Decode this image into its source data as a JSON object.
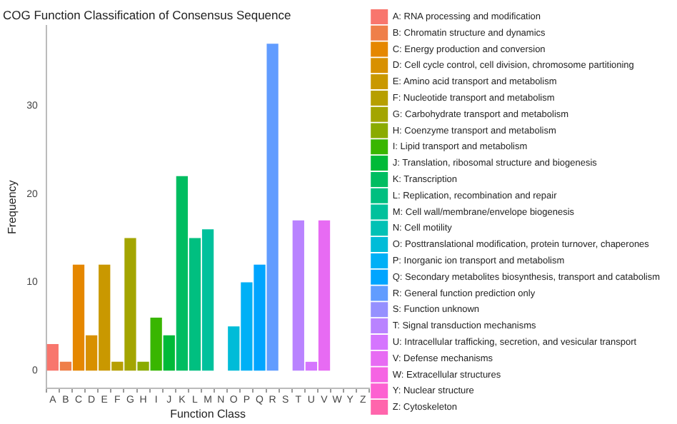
{
  "chart_data": {
    "type": "bar",
    "title": "COG Function Classification of Consensus Sequence",
    "xlabel": "Function Class",
    "ylabel": "Frequency",
    "categories": [
      "A",
      "B",
      "C",
      "D",
      "E",
      "F",
      "G",
      "H",
      "I",
      "J",
      "K",
      "L",
      "M",
      "N",
      "O",
      "P",
      "Q",
      "R",
      "S",
      "T",
      "U",
      "V",
      "W",
      "Y",
      "Z"
    ],
    "series": [
      {
        "name": "A: RNA processing and modification",
        "color": "#f8766d",
        "values": [
          3,
          null,
          null,
          null,
          null,
          null,
          null,
          null,
          null,
          null,
          null,
          null,
          null,
          null,
          null,
          null,
          null,
          null,
          null,
          null,
          null,
          null,
          null,
          null,
          null
        ]
      },
      {
        "name": "B: Chromatin structure and dynamics",
        "color": "#ef7f49",
        "values": [
          null,
          1,
          null,
          null,
          null,
          null,
          null,
          null,
          null,
          null,
          null,
          null,
          null,
          null,
          null,
          null,
          null,
          null,
          null,
          null,
          null,
          null,
          null,
          null,
          null
        ]
      },
      {
        "name": "C: Energy production and conversion",
        "color": "#e58700",
        "values": [
          null,
          null,
          12,
          null,
          null,
          null,
          null,
          null,
          null,
          null,
          null,
          null,
          null,
          null,
          null,
          null,
          null,
          null,
          null,
          null,
          null,
          null,
          null,
          null,
          null
        ]
      },
      {
        "name": "D: Cell cycle control, cell division, chromosome partitioning",
        "color": "#d89000",
        "values": [
          null,
          null,
          null,
          4,
          null,
          null,
          null,
          null,
          null,
          null,
          null,
          null,
          null,
          null,
          null,
          null,
          null,
          null,
          null,
          null,
          null,
          null,
          null,
          null,
          null
        ]
      },
      {
        "name": "E: Amino acid transport and metabolism",
        "color": "#c99800",
        "values": [
          null,
          null,
          null,
          null,
          12,
          null,
          null,
          null,
          null,
          null,
          null,
          null,
          null,
          null,
          null,
          null,
          null,
          null,
          null,
          null,
          null,
          null,
          null,
          null,
          null
        ]
      },
      {
        "name": "F: Nucleotide transport and metabolism",
        "color": "#b79f00",
        "values": [
          null,
          null,
          null,
          null,
          null,
          1,
          null,
          null,
          null,
          null,
          null,
          null,
          null,
          null,
          null,
          null,
          null,
          null,
          null,
          null,
          null,
          null,
          null,
          null,
          null
        ]
      },
      {
        "name": "G: Carbohydrate transport and metabolism",
        "color": "#a3a500",
        "values": [
          null,
          null,
          null,
          null,
          null,
          null,
          15,
          null,
          null,
          null,
          null,
          null,
          null,
          null,
          null,
          null,
          null,
          null,
          null,
          null,
          null,
          null,
          null,
          null,
          null
        ]
      },
      {
        "name": "H: Coenzyme transport and metabolism",
        "color": "#8aab00",
        "values": [
          null,
          null,
          null,
          null,
          null,
          null,
          null,
          1,
          null,
          null,
          null,
          null,
          null,
          null,
          null,
          null,
          null,
          null,
          null,
          null,
          null,
          null,
          null,
          null,
          null
        ]
      },
      {
        "name": "I: Lipid transport and metabolism",
        "color": "#39b600",
        "values": [
          null,
          null,
          null,
          null,
          null,
          null,
          null,
          null,
          6,
          null,
          null,
          null,
          null,
          null,
          null,
          null,
          null,
          null,
          null,
          null,
          null,
          null,
          null,
          null,
          null
        ]
      },
      {
        "name": "J: Translation, ribosomal structure and biogenesis",
        "color": "#00ba38",
        "values": [
          null,
          null,
          null,
          null,
          null,
          null,
          null,
          null,
          null,
          4,
          null,
          null,
          null,
          null,
          null,
          null,
          null,
          null,
          null,
          null,
          null,
          null,
          null,
          null,
          null
        ]
      },
      {
        "name": "K: Transcription",
        "color": "#00bd61",
        "values": [
          null,
          null,
          null,
          null,
          null,
          null,
          null,
          null,
          null,
          null,
          22,
          null,
          null,
          null,
          null,
          null,
          null,
          null,
          null,
          null,
          null,
          null,
          null,
          null,
          null
        ]
      },
      {
        "name": "L: Replication, recombination and repair",
        "color": "#00bf80",
        "values": [
          null,
          null,
          null,
          null,
          null,
          null,
          null,
          null,
          null,
          null,
          null,
          15,
          null,
          null,
          null,
          null,
          null,
          null,
          null,
          null,
          null,
          null,
          null,
          null,
          null
        ]
      },
      {
        "name": "M: Cell wall/membrane/envelope biogenesis",
        "color": "#00c19c",
        "values": [
          null,
          null,
          null,
          null,
          null,
          null,
          null,
          null,
          null,
          null,
          null,
          null,
          16,
          null,
          null,
          null,
          null,
          null,
          null,
          null,
          null,
          null,
          null,
          null,
          null
        ]
      },
      {
        "name": "N: Cell motility",
        "color": "#00c1b5",
        "values": [
          null,
          null,
          null,
          null,
          null,
          null,
          null,
          null,
          null,
          null,
          null,
          null,
          null,
          0,
          null,
          null,
          null,
          null,
          null,
          null,
          null,
          null,
          null,
          null,
          null
        ]
      },
      {
        "name": "O: Posttranslational modification, protein turnover, chaperones",
        "color": "#00bcd8",
        "values": [
          null,
          null,
          null,
          null,
          null,
          null,
          null,
          null,
          null,
          null,
          null,
          null,
          null,
          null,
          5,
          null,
          null,
          null,
          null,
          null,
          null,
          null,
          null,
          null,
          null
        ]
      },
      {
        "name": "P: Inorganic ion transport and metabolism",
        "color": "#00b0f6",
        "values": [
          null,
          null,
          null,
          null,
          null,
          null,
          null,
          null,
          null,
          null,
          null,
          null,
          null,
          null,
          null,
          10,
          null,
          null,
          null,
          null,
          null,
          null,
          null,
          null,
          null
        ]
      },
      {
        "name": "Q: Secondary metabolites biosynthesis, transport and catabolism",
        "color": "#00a5ff",
        "values": [
          null,
          null,
          null,
          null,
          null,
          null,
          null,
          null,
          null,
          null,
          null,
          null,
          null,
          null,
          null,
          null,
          12,
          null,
          null,
          null,
          null,
          null,
          null,
          null,
          null
        ]
      },
      {
        "name": "R: General function prediction only",
        "color": "#619cff",
        "values": [
          null,
          null,
          null,
          null,
          null,
          null,
          null,
          null,
          null,
          null,
          null,
          null,
          null,
          null,
          null,
          null,
          null,
          37,
          null,
          null,
          null,
          null,
          null,
          null,
          null
        ]
      },
      {
        "name": "S: Function unknown",
        "color": "#9590ff",
        "values": [
          null,
          null,
          null,
          null,
          null,
          null,
          null,
          null,
          null,
          null,
          null,
          null,
          null,
          null,
          null,
          null,
          null,
          null,
          0,
          null,
          null,
          null,
          null,
          null,
          null
        ]
      },
      {
        "name": "T: Signal transduction mechanisms",
        "color": "#b983ff",
        "values": [
          null,
          null,
          null,
          null,
          null,
          null,
          null,
          null,
          null,
          null,
          null,
          null,
          null,
          null,
          null,
          null,
          null,
          null,
          null,
          17,
          null,
          null,
          null,
          null,
          null
        ]
      },
      {
        "name": "U: Intracellular trafficking, secretion, and vesicular transport",
        "color": "#d575fe",
        "values": [
          null,
          null,
          null,
          null,
          null,
          null,
          null,
          null,
          null,
          null,
          null,
          null,
          null,
          null,
          null,
          null,
          null,
          null,
          null,
          null,
          1,
          null,
          null,
          null,
          null
        ]
      },
      {
        "name": "V: Defense mechanisms",
        "color": "#e76bf3",
        "values": [
          null,
          null,
          null,
          null,
          null,
          null,
          null,
          null,
          null,
          null,
          null,
          null,
          null,
          null,
          null,
          null,
          null,
          null,
          null,
          null,
          null,
          17,
          null,
          null,
          null
        ]
      },
      {
        "name": "W: Extracellular structures",
        "color": "#f564e3",
        "values": [
          null,
          null,
          null,
          null,
          null,
          null,
          null,
          null,
          null,
          null,
          null,
          null,
          null,
          null,
          null,
          null,
          null,
          null,
          null,
          null,
          null,
          null,
          0,
          null,
          null
        ]
      },
      {
        "name": "Y: Nuclear structure",
        "color": "#fd61d1",
        "values": [
          null,
          null,
          null,
          null,
          null,
          null,
          null,
          null,
          null,
          null,
          null,
          null,
          null,
          null,
          null,
          null,
          null,
          null,
          null,
          null,
          null,
          null,
          null,
          0,
          null
        ]
      },
      {
        "name": "Z: Cytoskeleton",
        "color": "#ff65ac",
        "values": [
          null,
          null,
          null,
          null,
          null,
          null,
          null,
          null,
          null,
          null,
          null,
          null,
          null,
          null,
          null,
          null,
          null,
          null,
          null,
          null,
          null,
          null,
          null,
          null,
          0
        ]
      }
    ],
    "ylim": [
      -2,
      39
    ],
    "yticks": [
      0,
      10,
      20,
      30
    ],
    "grid": false,
    "legend": "right"
  }
}
